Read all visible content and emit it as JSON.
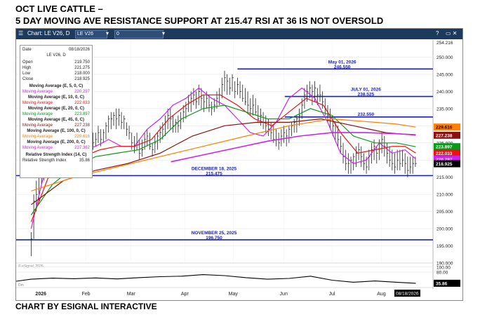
{
  "header": {
    "line1": "OCT LIVE CATTLE –",
    "line2": "5 DAY MOVING AVE RESISTANCE  SUPPORT AT 215.47  RSI AT 36 IS NOT OVERSOLD",
    "footer": "CHART BY ESIGNAL INTERACTIVE"
  },
  "toolbar": {
    "chart_label": "Chart: LE V26, D",
    "symbol": "LE V26",
    "interval_value": "0",
    "help": "?",
    "window_buttons": "▭ ✕"
  },
  "data_window": {
    "date_label": "Date",
    "date_value": "08/18/2026",
    "symbol_line": "LE V26, D",
    "open_label": "Open",
    "open_value": "219.750",
    "high_label": "High",
    "high_value": "221.275",
    "low_label": "Low",
    "low_value": "218.000",
    "close_label": "Close",
    "close_value": "218.925",
    "ma5_title": "Moving Average (E, 5, 0, C)",
    "ma5_label": "Moving Average",
    "ma5_value": "220.297",
    "ma10_title": "Moving Average (E, 10, 0, C)",
    "ma10_label": "Moving Average",
    "ma10_value": "222.033",
    "ma20_title": "Moving Average (E, 20, 0, C)",
    "ma20_label": "Moving Average",
    "ma20_value": "223.897",
    "ma45_title": "Moving Average (E, 45, 0, C)",
    "ma45_label": "Moving Average",
    "ma45_value": "227.238",
    "ma100_title": "Moving Average (E, 100, 0, C)",
    "ma100_label": "Moving Average",
    "ma100_value": "229.616",
    "ma200_title": "Moving Average (E, 200, 0, C)",
    "ma200_label": "Moving Average",
    "ma200_value": "227.362",
    "rsi_title": "Relative Strength Index (14, C)",
    "rsi_label": "Relative Strength Index",
    "rsi_value": "35.86"
  },
  "chart_data": {
    "type": "candlestick",
    "ylim": [
      190,
      255
    ],
    "y_ticks": [
      190,
      195,
      200,
      205,
      210,
      215,
      220,
      225,
      230,
      235,
      240,
      245,
      250
    ],
    "y_tick_labels": [
      "190.000",
      "195.000",
      "200.000",
      "205.000",
      "210.000",
      "215.000",
      "220.000",
      "225.000",
      "230.000",
      "235.000",
      "240.000",
      "245.000",
      "250.000"
    ],
    "top_label": "254.216",
    "x_labels": [
      {
        "x": 4.5,
        "text": "2026",
        "bold": true
      },
      {
        "x": 25.5,
        "text": "Feb",
        "bold": false
      },
      {
        "x": 46.5,
        "text": "Mar",
        "bold": false
      },
      {
        "x": 71.5,
        "text": "Apr",
        "bold": false
      },
      {
        "x": 94,
        "text": "May",
        "bold": false
      },
      {
        "x": 117.5,
        "text": "Jun",
        "bold": false
      },
      {
        "x": 140,
        "text": "Jul",
        "bold": false
      },
      {
        "x": 163,
        "text": "Aug",
        "bold": false
      }
    ],
    "x_range": [
      -7,
      187
    ],
    "date_label": "08/18/2026",
    "watermark": "© eSignal, 2026",
    "dm_label": "Dm",
    "sr_lines": [
      {
        "name": "May 01, 2026 resistance",
        "value": 246.55,
        "x0": 96,
        "x1": 187,
        "label_date": "May 01, 2026",
        "label_value": "246.550"
      },
      {
        "name": "July 01, 2026 resistance",
        "value": 238.525,
        "x0": 118,
        "x1": 187,
        "label_date": "JULY 01, 2026",
        "label_value": "238.525"
      },
      {
        "name": "232.550 resistance",
        "value": 232.55,
        "x0": 118,
        "x1": 187,
        "label_date": "",
        "label_value": "232.550"
      },
      {
        "name": "December 18, 2025 support",
        "value": 215.475,
        "x0": -7,
        "x1": 187,
        "label_date": "DECEMBER 18, 2025",
        "label_value": "215.475"
      },
      {
        "name": "November 25, 2025 support",
        "value": 196.75,
        "x0": -7,
        "x1": 187,
        "label_date": "NOVEMBER 25, 2025",
        "label_value": "196.750"
      }
    ],
    "value_tags": [
      {
        "value": 229.616,
        "text": "229.616",
        "color": "#ff7f00",
        "text_color": "#000000"
      },
      {
        "value": 227.238,
        "text": "227.238",
        "color": "#8b1010",
        "text_color": "#ffffff"
      },
      {
        "value": 223.897,
        "text": "223.897",
        "color": "#0a9a1a",
        "text_color": "#ffffff"
      },
      {
        "value": 222.033,
        "text": "222.033",
        "color": "#ee1111",
        "text_color": "#ffffff"
      },
      {
        "value": 220.297,
        "text": "220.297",
        "color": "#cc22ee",
        "text_color": "#ffffff"
      },
      {
        "value": 218.925,
        "text": "218.925",
        "color": "#000000",
        "text_color": "#ffffff"
      }
    ],
    "candles_hlc": [
      [
        199,
        192,
        197
      ],
      [
        210,
        197,
        208
      ],
      [
        214,
        205,
        210
      ],
      [
        218,
        208,
        215
      ],
      [
        219,
        213,
        217
      ],
      [
        222,
        214,
        220
      ],
      [
        223,
        218,
        221
      ],
      [
        224,
        219,
        222
      ],
      [
        222,
        217,
        220
      ],
      [
        223,
        218,
        219
      ],
      [
        226,
        218,
        224
      ],
      [
        226,
        221,
        224
      ],
      [
        225,
        219,
        221
      ],
      [
        226,
        221,
        224
      ],
      [
        228,
        223,
        226
      ],
      [
        227,
        222,
        224
      ],
      [
        226,
        221,
        222
      ],
      [
        228,
        223,
        227
      ],
      [
        227,
        222,
        225
      ],
      [
        226,
        222,
        224
      ],
      [
        228,
        223,
        226
      ],
      [
        226,
        222,
        225
      ],
      [
        227,
        223,
        226
      ],
      [
        229,
        224,
        226
      ],
      [
        228,
        223,
        225
      ],
      [
        228,
        224,
        226
      ],
      [
        230,
        225,
        228
      ],
      [
        229,
        224,
        226
      ],
      [
        229,
        225,
        228
      ],
      [
        231,
        226,
        230
      ],
      [
        233,
        228,
        232
      ],
      [
        234,
        229,
        232
      ],
      [
        234,
        230,
        233
      ],
      [
        235,
        229,
        232
      ],
      [
        235,
        230,
        233
      ],
      [
        234,
        229,
        231
      ],
      [
        233,
        229,
        232
      ],
      [
        231,
        227,
        229
      ],
      [
        230,
        226,
        228
      ],
      [
        228,
        223,
        225
      ],
      [
        227,
        222,
        224
      ],
      [
        228,
        223,
        225
      ],
      [
        226,
        220,
        222
      ],
      [
        226,
        221,
        223
      ],
      [
        228,
        223,
        226
      ],
      [
        229,
        224,
        227
      ],
      [
        228,
        223,
        224
      ],
      [
        225,
        221,
        223
      ],
      [
        227,
        222,
        225
      ],
      [
        228,
        223,
        227
      ],
      [
        230,
        225,
        228
      ],
      [
        231,
        226,
        229
      ],
      [
        233,
        227,
        231
      ],
      [
        235,
        229,
        233
      ],
      [
        235,
        229,
        232
      ],
      [
        233,
        228,
        230
      ],
      [
        232,
        228,
        231
      ],
      [
        233,
        228,
        230
      ],
      [
        234,
        229,
        232
      ],
      [
        236,
        231,
        234
      ],
      [
        237,
        232,
        235
      ],
      [
        239,
        234,
        237
      ],
      [
        240,
        234,
        238
      ],
      [
        241,
        236,
        239
      ],
      [
        240,
        235,
        237
      ],
      [
        242,
        236,
        240
      ],
      [
        241,
        235,
        238
      ],
      [
        239,
        234,
        237
      ],
      [
        240,
        235,
        238
      ],
      [
        239,
        234,
        236
      ],
      [
        237,
        233,
        235
      ],
      [
        238,
        234,
        236
      ],
      [
        240,
        235,
        238
      ],
      [
        241,
        236,
        239
      ],
      [
        244,
        238,
        242
      ],
      [
        246,
        240,
        244
      ],
      [
        245,
        239,
        243
      ],
      [
        244,
        239,
        241
      ],
      [
        245,
        240,
        244
      ],
      [
        243,
        238,
        240
      ],
      [
        244,
        239,
        242
      ],
      [
        243,
        238,
        240
      ],
      [
        242,
        237,
        238
      ],
      [
        241,
        236,
        237
      ],
      [
        240,
        234,
        236
      ],
      [
        238,
        233,
        235
      ],
      [
        239,
        233,
        236
      ],
      [
        238,
        233,
        234
      ],
      [
        236,
        231,
        232
      ],
      [
        235,
        230,
        233
      ],
      [
        234,
        229,
        231
      ],
      [
        233,
        228,
        230
      ],
      [
        232,
        227,
        229
      ],
      [
        231,
        226,
        228
      ],
      [
        230,
        225,
        226
      ],
      [
        229,
        224,
        226
      ],
      [
        228,
        223,
        225
      ],
      [
        229,
        224,
        227
      ],
      [
        230,
        225,
        228
      ],
      [
        229,
        224,
        227
      ],
      [
        230,
        225,
        229
      ],
      [
        231,
        227,
        230
      ],
      [
        232,
        228,
        231
      ],
      [
        233,
        228,
        232
      ],
      [
        235,
        230,
        233
      ],
      [
        238,
        232,
        236
      ],
      [
        241,
        235,
        239
      ],
      [
        242,
        237,
        240
      ],
      [
        243,
        238,
        241
      ],
      [
        242,
        236,
        240
      ],
      [
        243,
        237,
        241
      ],
      [
        241,
        236,
        239
      ],
      [
        242,
        237,
        239
      ],
      [
        240,
        235,
        237
      ],
      [
        238,
        233,
        235
      ],
      [
        236,
        231,
        233
      ],
      [
        235,
        229,
        232
      ],
      [
        233,
        227,
        230
      ],
      [
        231,
        226,
        228
      ],
      [
        230,
        224,
        226
      ],
      [
        227,
        222,
        224
      ],
      [
        225,
        219,
        221
      ],
      [
        223,
        217,
        219
      ],
      [
        222,
        216,
        219
      ],
      [
        221,
        216,
        220
      ],
      [
        222,
        217,
        221
      ],
      [
        224,
        218,
        222
      ],
      [
        225,
        220,
        223
      ],
      [
        224,
        218,
        221
      ],
      [
        222,
        217,
        219
      ],
      [
        221,
        216,
        218
      ],
      [
        223,
        217,
        221
      ],
      [
        225,
        219,
        223
      ],
      [
        226,
        220,
        224
      ],
      [
        224,
        219,
        222
      ],
      [
        226,
        220,
        225
      ],
      [
        228,
        222,
        226
      ],
      [
        227,
        221,
        224
      ],
      [
        225,
        219,
        222
      ],
      [
        224,
        218,
        220
      ],
      [
        223,
        217,
        219
      ],
      [
        222,
        216,
        218
      ],
      [
        223,
        217,
        220
      ],
      [
        223,
        217,
        219
      ],
      [
        223,
        218,
        220
      ],
      [
        222,
        216,
        219
      ],
      [
        221,
        215,
        217
      ],
      [
        221,
        216,
        218
      ],
      [
        221,
        216,
        219
      ],
      [
        221,
        218,
        219
      ]
    ],
    "series": [
      {
        "name": "Moving Average (E, 5, 0, C)",
        "color": "#cc22ee",
        "width": 1.2,
        "x": [
          0,
          6,
          12,
          18,
          24,
          30,
          36,
          42,
          48,
          54,
          60,
          66,
          72,
          78,
          84,
          90,
          96,
          102,
          108,
          114,
          120,
          126,
          132,
          138,
          144,
          150,
          156,
          162,
          168,
          174,
          179
        ],
        "y": [
          200,
          216,
          221,
          222,
          223,
          224,
          226,
          224,
          224,
          229,
          232,
          236,
          238,
          241,
          238,
          236,
          232,
          228,
          227,
          231,
          238,
          241,
          238,
          231,
          222,
          219,
          220,
          225,
          222,
          223,
          220.297
        ]
      },
      {
        "name": "Moving Average (E, 10, 0, C)",
        "color": "#ee1111",
        "width": 1.2,
        "x": [
          0,
          8,
          16,
          24,
          32,
          40,
          48,
          56,
          64,
          72,
          80,
          88,
          96,
          104,
          112,
          120,
          128,
          136,
          144,
          152,
          160,
          168,
          174,
          179
        ],
        "y": [
          202,
          215,
          219,
          221,
          223,
          224,
          224,
          226,
          232,
          236,
          239,
          239,
          236,
          232,
          230,
          234,
          238,
          236,
          228,
          222,
          223,
          224,
          224,
          222.033
        ]
      },
      {
        "name": "Moving Average (E, 20, 0, C)",
        "color": "#0a9a1a",
        "width": 1.2,
        "x": [
          0,
          10,
          20,
          30,
          40,
          50,
          60,
          70,
          80,
          90,
          100,
          110,
          120,
          130,
          140,
          150,
          160,
          170,
          179
        ],
        "y": [
          204,
          213,
          218,
          221,
          222,
          223,
          226,
          232,
          235,
          236,
          234,
          232,
          232,
          235,
          233,
          227,
          225,
          225,
          223.897
        ]
      },
      {
        "name": "Moving Average (E, 45, 0, C)",
        "color": "#8b1010",
        "width": 1.2,
        "x": [
          0,
          15,
          30,
          45,
          60,
          75,
          90,
          105,
          120,
          135,
          150,
          165,
          179
        ],
        "y": [
          207,
          214,
          217,
          219,
          222,
          227,
          230,
          231,
          231,
          232,
          230,
          228,
          227.238
        ]
      },
      {
        "name": "Moving Average (E, 100, 0, C)",
        "color": "#ff7f00",
        "width": 1.2,
        "x": [
          0,
          20,
          40,
          60,
          80,
          100,
          120,
          140,
          160,
          170,
          179
        ],
        "y": [
          211,
          215,
          218,
          221,
          224,
          227,
          230,
          232,
          231,
          230.5,
          229.616
        ]
      },
      {
        "name": "Moving Average (E, 200, 0, C)",
        "color": "#cc22ee",
        "width": 1.6,
        "x": [
          65,
          80,
          95,
          110,
          125,
          140,
          155,
          165,
          172,
          179
        ],
        "y": [
          219.5,
          221.5,
          223.5,
          225.5,
          227,
          228,
          228,
          227.8,
          227.6,
          227.362
        ]
      }
    ],
    "rsi": {
      "name": "Relative Strength Index (14, C)",
      "value_label": "35.86",
      "ylim": [
        0,
        100
      ],
      "ticks": [
        100,
        80
      ],
      "tick_labels": [
        "100.00",
        "80.00"
      ],
      "x": [
        -7,
        0,
        10,
        20,
        30,
        40,
        50,
        60,
        70,
        80,
        90,
        100,
        110,
        120,
        130,
        140,
        150,
        160,
        170,
        179
      ],
      "y": [
        44,
        52,
        56,
        54,
        57,
        53,
        58,
        62,
        64,
        70,
        66,
        58,
        52,
        55,
        64,
        48,
        40,
        45,
        40,
        35.86
      ]
    }
  }
}
